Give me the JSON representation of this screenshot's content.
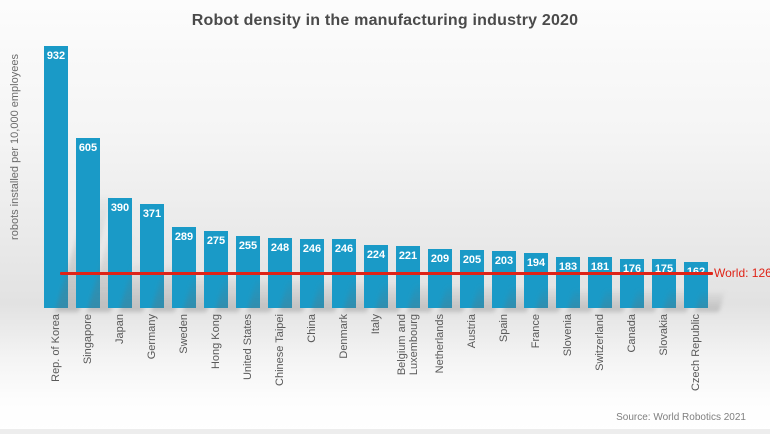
{
  "chart_data": {
    "type": "bar",
    "title": "Robot density in the manufacturing industry 2020",
    "ylabel": "robots installed per 10,000 employees",
    "xlabel": "",
    "categories": [
      "Rep. of Korea",
      "Singapore",
      "Japan",
      "Germany",
      "Sweden",
      "Hong Kong",
      "United States",
      "Chinese Taipei",
      "China",
      "Denmark",
      "Italy",
      "Belgium and\nLuxembourg",
      "Netherlands",
      "Austria",
      "Spain",
      "France",
      "Slovenia",
      "Switzerland",
      "Canada",
      "Slovakia",
      "Czech Republic"
    ],
    "values": [
      932,
      605,
      390,
      371,
      289,
      275,
      255,
      248,
      246,
      246,
      224,
      221,
      209,
      205,
      203,
      194,
      183,
      181,
      176,
      175,
      162
    ],
    "ylim": [
      0,
      950
    ],
    "grid": false,
    "legend": false,
    "bar_value_labels_inside_top": true,
    "annotation": {
      "label": "World: 126",
      "value": 126
    },
    "source": "Source: World Robotics 2021",
    "colors": {
      "bar": "#1a9ac7",
      "value_text": "#ffffff",
      "world_line": "#df2317",
      "title_text": "#4a4a4a",
      "axis_text": "#595959"
    }
  }
}
